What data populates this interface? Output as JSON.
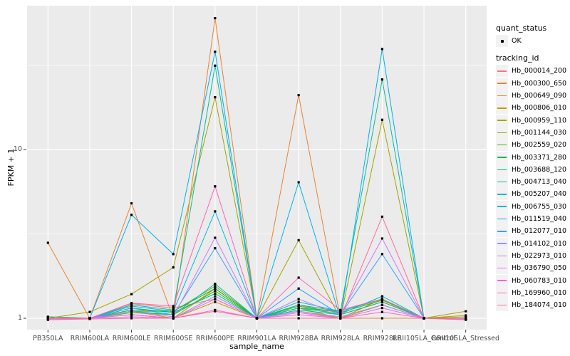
{
  "colors": {
    "panel_background": "#EBEBEB",
    "grid_line": "#FFFFFF",
    "legend_key_background": "#F2F2F2",
    "point_color": "#000000",
    "tick_mark_color": "#333333",
    "tick_text_color": "#4D4D4D"
  },
  "chart_data": {
    "type": "line",
    "title": "",
    "xlabel": "sample_name",
    "ylabel": "FPKM + 1",
    "y_scale": "log10",
    "ylim": [
      0.92,
      72
    ],
    "y_major_ticks": [
      1,
      10
    ],
    "y_minor_gridlines": [
      3.16,
      31.6
    ],
    "grid": "on",
    "legend_position": "right",
    "categories": [
      "PB350LA",
      "RRIM600LA",
      "RRIM600LE",
      "RRIM600SE",
      "RRIM600PE",
      "RRIM901LA",
      "RRIM928BA",
      "RRIM928LA",
      "RRIM928LE",
      "RRII105LA_Control",
      "RRII105LA_Stressed"
    ],
    "series": [
      {
        "name": "Hb_000014_200",
        "color": "#F8766D",
        "values": [
          1.02,
          1.0,
          1.22,
          1.15,
          1.3,
          1.0,
          1.2,
          1.05,
          1.25,
          1.0,
          1.0
        ]
      },
      {
        "name": "Hb_000300_650",
        "color": "#EA8331",
        "values": [
          2.8,
          1.0,
          4.8,
          1.0,
          60.0,
          1.0,
          21.0,
          1.0,
          1.0,
          1.0,
          1.0
        ]
      },
      {
        "name": "Hb_000649_090",
        "color": "#D89000",
        "values": [
          1.0,
          1.0,
          1.1,
          1.0,
          1.25,
          1.0,
          1.1,
          1.0,
          1.3,
          1.0,
          1.0
        ]
      },
      {
        "name": "Hb_000806_010",
        "color": "#C09B00",
        "values": [
          1.0,
          1.0,
          1.05,
          1.0,
          1.5,
          1.0,
          1.15,
          1.0,
          1.2,
          1.0,
          1.04
        ]
      },
      {
        "name": "Hb_000959_110",
        "color": "#A3A500",
        "values": [
          1.0,
          1.09,
          1.39,
          2.0,
          20.4,
          1.0,
          2.9,
          1.0,
          15.0,
          1.0,
          1.1
        ]
      },
      {
        "name": "Hb_001144_030",
        "color": "#7CAE00",
        "values": [
          1.0,
          1.0,
          1.1,
          1.1,
          1.55,
          1.0,
          1.2,
          1.1,
          1.3,
          1.0,
          1.02
        ]
      },
      {
        "name": "Hb_002559_020",
        "color": "#39B600",
        "values": [
          1.0,
          1.0,
          1.08,
          1.05,
          1.45,
          1.0,
          1.18,
          1.08,
          1.28,
          1.0,
          1.0
        ]
      },
      {
        "name": "Hb_003371_280",
        "color": "#00BB4E",
        "values": [
          1.02,
          1.0,
          1.12,
          1.1,
          1.5,
          1.0,
          1.15,
          1.1,
          1.3,
          1.0,
          1.0
        ]
      },
      {
        "name": "Hb_003688_120",
        "color": "#00C079",
        "values": [
          1.0,
          1.0,
          1.15,
          1.08,
          1.4,
          1.0,
          1.12,
          1.05,
          1.25,
          1.0,
          1.0
        ]
      },
      {
        "name": "Hb_004713_040",
        "color": "#00C19C",
        "values": [
          1.0,
          1.0,
          1.2,
          1.12,
          31.4,
          1.0,
          1.2,
          1.1,
          26.0,
          1.0,
          1.0
        ]
      },
      {
        "name": "Hb_005207_040",
        "color": "#00BFC4",
        "values": [
          1.0,
          1.0,
          1.1,
          1.05,
          1.6,
          1.0,
          1.15,
          1.06,
          1.35,
          1.0,
          1.0
        ]
      },
      {
        "name": "Hb_006755_030",
        "color": "#00BAE0",
        "values": [
          1.0,
          1.0,
          1.18,
          1.1,
          4.3,
          1.0,
          1.25,
          1.1,
          1.3,
          1.0,
          1.0
        ]
      },
      {
        "name": "Hb_011519_040",
        "color": "#00B0F6",
        "values": [
          1.0,
          1.0,
          4.1,
          2.4,
          38.0,
          1.0,
          6.4,
          1.0,
          39.4,
          1.0,
          1.0
        ]
      },
      {
        "name": "Hb_012077_010",
        "color": "#35A2FF",
        "values": [
          1.0,
          1.0,
          1.15,
          1.05,
          2.6,
          1.0,
          1.5,
          1.05,
          2.4,
          1.0,
          1.0
        ]
      },
      {
        "name": "Hb_014102_010",
        "color": "#9590FF",
        "values": [
          1.0,
          1.0,
          1.05,
          1.0,
          1.35,
          1.0,
          1.1,
          1.02,
          1.2,
          1.0,
          1.0
        ]
      },
      {
        "name": "Hb_022973_010",
        "color": "#C77CFF",
        "values": [
          1.0,
          1.0,
          1.1,
          1.02,
          3.0,
          1.0,
          1.3,
          1.05,
          2.97,
          1.0,
          1.0
        ]
      },
      {
        "name": "Hb_036790_050",
        "color": "#E76BF3",
        "values": [
          0.98,
          1.0,
          1.05,
          1.0,
          1.3,
          1.0,
          1.08,
          1.0,
          1.15,
          1.0,
          0.99
        ]
      },
      {
        "name": "Hb_060783_010",
        "color": "#FA62DB",
        "values": [
          0.99,
          1.0,
          1.02,
          1.0,
          1.12,
          1.0,
          1.05,
          1.0,
          1.09,
          1.0,
          0.98
        ]
      },
      {
        "name": "Hb_169960_010",
        "color": "#FF62BC",
        "values": [
          1.0,
          1.0,
          1.23,
          1.18,
          6.05,
          1.0,
          1.74,
          1.12,
          1.3,
          1.0,
          1.0
        ]
      },
      {
        "name": "Hb_184074_010",
        "color": "#FF6A98",
        "values": [
          0.98,
          0.99,
          1.0,
          1.0,
          1.1,
          1.0,
          1.0,
          1.0,
          4.0,
          1.0,
          0.98
        ]
      }
    ],
    "legend": {
      "quant_status_title": "quant_status",
      "quant_status_items": [
        "OK"
      ],
      "tracking_title": "tracking_id"
    }
  }
}
